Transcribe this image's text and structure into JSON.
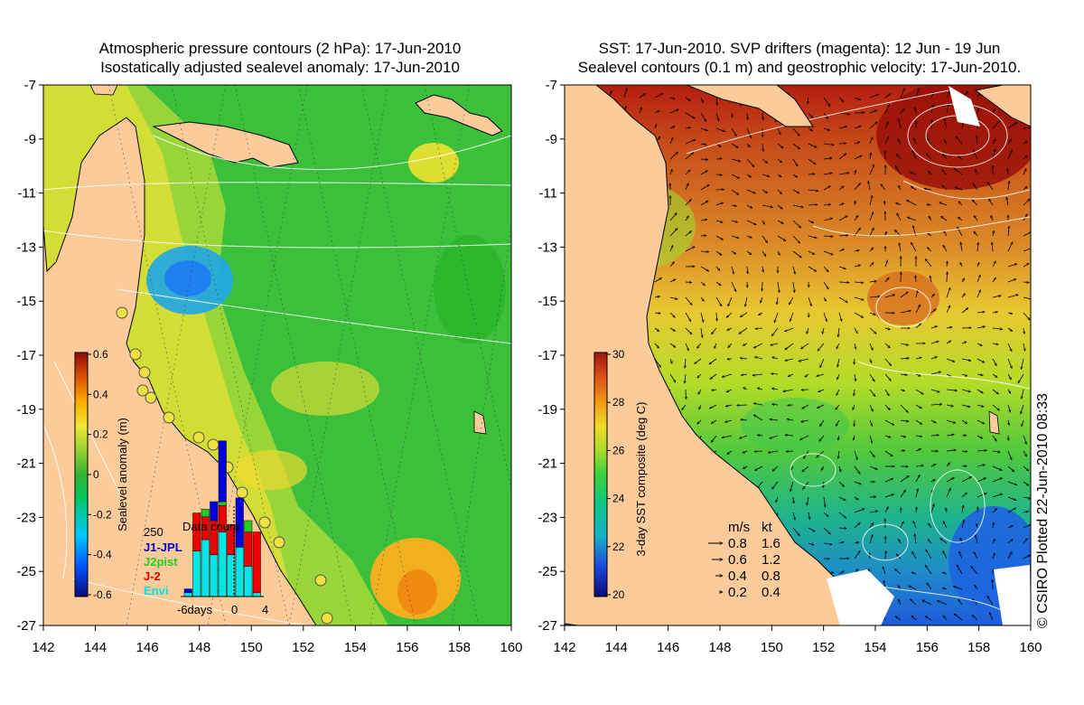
{
  "left_panel": {
    "title_line1": "Atmospheric pressure contours (2 hPa): 17-Jun-2010",
    "title_line2": "Isostatically adjusted sealevel anomaly: 17-Jun-2010",
    "colorbar": {
      "label": "Sealevel anomaly (m)",
      "ticks": [
        "0.6",
        "0.4",
        "0.2",
        "0",
        "-0.2",
        "-0.4",
        "-0.6"
      ],
      "colors": [
        "#0a0a78",
        "#0050ff",
        "#00c8ff",
        "#00c864",
        "#32b432",
        "#96d232",
        "#f0e632",
        "#ffaa00",
        "#dc5000",
        "#8c0a0a"
      ]
    },
    "inset": {
      "title": "Data count",
      "ymax_label": "250",
      "x_labels": [
        "-6days",
        "0",
        "4"
      ],
      "legend": [
        {
          "label": "J1-JPL",
          "color": "#0000dd"
        },
        {
          "label": "J2pist",
          "color": "#22cc22"
        },
        {
          "label": "J-2",
          "color": "#ee0000"
        },
        {
          "label": "Envi",
          "color": "#00e5e5"
        }
      ],
      "bars": [
        {
          "day": -6,
          "envi": 10,
          "j2": 0,
          "j2pist": 0,
          "j1": 10
        },
        {
          "day": -5,
          "envi": 120,
          "j2": 100,
          "j2pist": 0,
          "j1": 0
        },
        {
          "day": -4,
          "envi": 150,
          "j2": 60,
          "j2pist": 20,
          "j1": 0
        },
        {
          "day": -3,
          "envi": 110,
          "j2": 90,
          "j2pist": 0,
          "j1": 50
        },
        {
          "day": -2,
          "envi": 170,
          "j2": 70,
          "j2pist": 10,
          "j1": 160
        },
        {
          "day": -1,
          "envi": 110,
          "j2": 80,
          "j2pist": 0,
          "j1": 0
        },
        {
          "day": 0,
          "envi": 130,
          "j2": 0,
          "j2pist": 0,
          "j1": 130
        },
        {
          "day": 1,
          "envi": 80,
          "j2": 90,
          "j2pist": 30,
          "j1": 0
        },
        {
          "day": 2,
          "envi": 10,
          "j2": 160,
          "j2pist": 0,
          "j1": 0
        }
      ]
    }
  },
  "right_panel": {
    "title_line1": "SST: 17-Jun-2010. SVP drifters (magenta): 12 Jun - 19 Jun",
    "title_line2": "Sealevel contours (0.1 m) and geostrophic velocity: 17-Jun-2010.",
    "colorbar": {
      "label": "3-day SST composite (deg C)",
      "ticks": [
        "30",
        "28",
        "26",
        "24",
        "22",
        "20"
      ],
      "colors": [
        "#0a0a78",
        "#1e46dc",
        "#14b4c8",
        "#14c878",
        "#3cd23c",
        "#aadc28",
        "#f0dc28",
        "#f09614",
        "#dc5014",
        "#a01414"
      ]
    },
    "velocity_legend": {
      "header": [
        "m/s",
        "kt"
      ],
      "rows": [
        [
          "0.8",
          "1.6"
        ],
        [
          "0.6",
          "1.2"
        ],
        [
          "0.4",
          "0.8"
        ],
        [
          "0.2",
          "0.4"
        ]
      ]
    }
  },
  "axes": {
    "lat_ticks": [
      "-7",
      "-9",
      "-11",
      "-13",
      "-15",
      "-17",
      "-19",
      "-21",
      "-23",
      "-25",
      "-27"
    ],
    "lon_ticks": [
      "142",
      "144",
      "146",
      "148",
      "150",
      "152",
      "154",
      "156",
      "158",
      "160"
    ],
    "lat_range": [
      -27,
      -7
    ],
    "lon_range": [
      142,
      160
    ]
  },
  "credit": "© CSIRO Plotted 22-Jun-2010 08:33",
  "colors": {
    "land": "#fccb9a",
    "land_lines": "#000000",
    "contours": "#ffffff"
  }
}
